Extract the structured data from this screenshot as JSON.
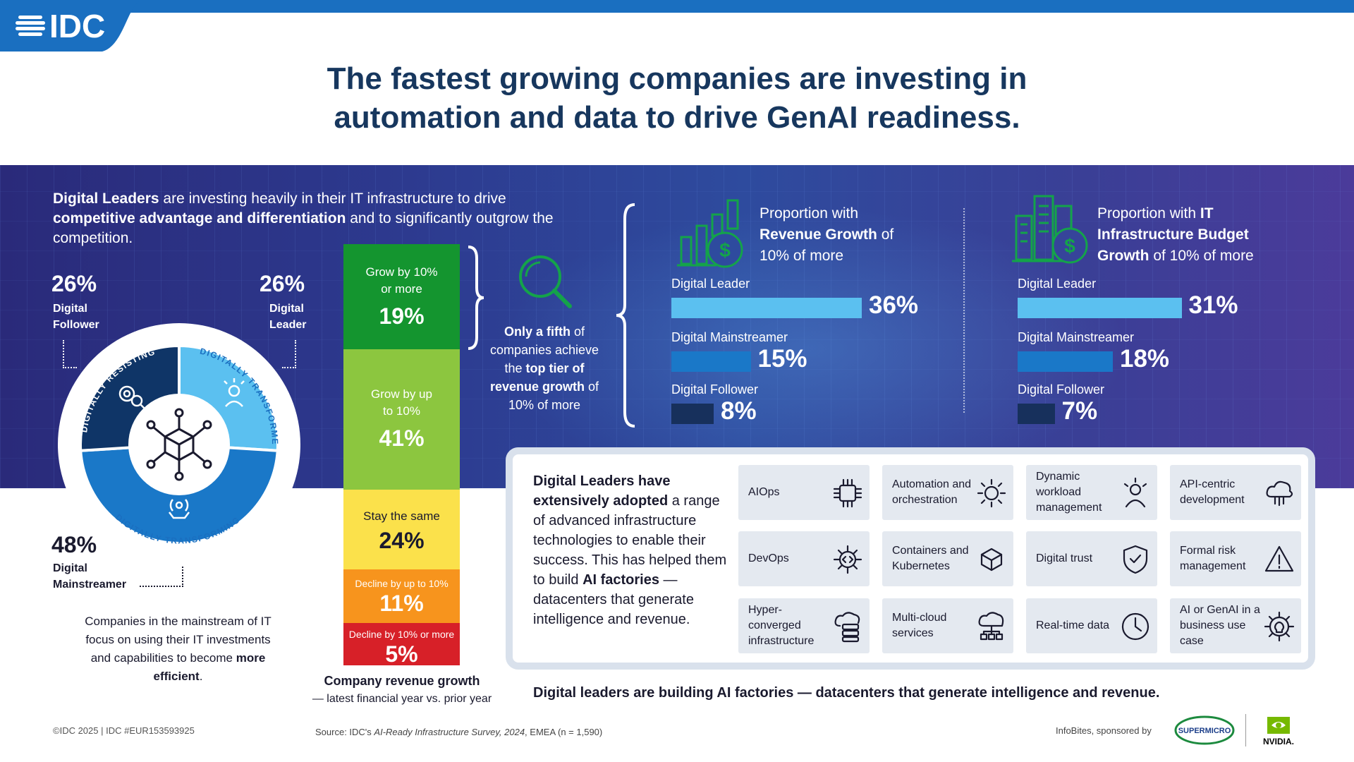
{
  "brand": {
    "logo": "IDC",
    "blue": "#1a6fc0",
    "navy": "#17375e"
  },
  "headline": {
    "line1": "The fastest growing companies are investing in",
    "line2": "automation and data to drive GenAI readiness."
  },
  "intro": {
    "b1": "Digital Leaders",
    "t1": " are investing heavily in their IT infrastructure to drive ",
    "b2": "competitive advantage and differentiation",
    "t2": " and to significantly outgrow the competition."
  },
  "segments": {
    "follower": {
      "pct": "26%",
      "name1": "Digital",
      "name2": "Follower",
      "value": 26
    },
    "leader": {
      "pct": "26%",
      "name1": "Digital",
      "name2": "Leader",
      "value": 26
    },
    "mainstreamer": {
      "pct": "48%",
      "name1": "Digital",
      "name2": "Mainstreamer",
      "value": 48
    },
    "ring_labels": [
      "DIGITALLY RESISTING",
      "DIGITALLY TRANSFORMED",
      "DIGITALLY TRANSFORMING"
    ]
  },
  "mainstream_note": {
    "t1": "Companies in the mainstream of IT focus on using their IT investments and capabilities to become ",
    "b1": "more efficient",
    "t2": "."
  },
  "chart_data": [
    {
      "type": "bar",
      "title": "Company revenue growth",
      "subtitle": "— latest financial year vs. prior year",
      "categories": [
        "Grow by 10% or more",
        "Grow by up to 10%",
        "Stay the same",
        "Decline by up to 10%",
        "Decline by 10% or more"
      ],
      "values": [
        19,
        41,
        24,
        11,
        5
      ],
      "value_labels": [
        "19%",
        "41%",
        "24%",
        "11%",
        "5%"
      ],
      "colors": [
        "#14952f",
        "#8cc63f",
        "#fbe14b",
        "#f7941d",
        "#d72028"
      ],
      "stacked": true
    },
    {
      "type": "bar",
      "title": "Proportion with Revenue Growth of 10% of more",
      "categories": [
        "Digital Leader",
        "Digital Mainstreamer",
        "Digital Follower"
      ],
      "values": [
        36,
        15,
        8
      ],
      "value_labels": [
        "36%",
        "15%",
        "8%"
      ],
      "colors": [
        "#5bc0f0",
        "#1a78c8",
        "#17305c"
      ]
    },
    {
      "type": "bar",
      "title": "Proportion with IT Infrastructure Budget Growth of 10% of more",
      "categories": [
        "Digital Leader",
        "Digital Mainstreamer",
        "Digital Follower"
      ],
      "values": [
        31,
        18,
        7
      ],
      "value_labels": [
        "31%",
        "18%",
        "7%"
      ],
      "colors": [
        "#5bc0f0",
        "#1a78c8",
        "#17305c"
      ]
    }
  ],
  "stack_labels": {
    "s1a": "Grow by 10%",
    "s1b": "or more",
    "s2a": "Grow by up",
    "s2b": "to 10%",
    "s3": "Stay the same",
    "s4": "Decline by up to 10%",
    "s5": "Decline by 10% or more"
  },
  "fifth": {
    "b1": "Only a fifth",
    "t1": " of companies achieve the ",
    "b2": "top tier of revenue growth",
    "t2": " of 10% of more"
  },
  "panel1": {
    "t1": "Proportion with",
    "b1": "Revenue Growth",
    "t2": " of",
    "t3": "10% of more"
  },
  "panel2": {
    "t1": "Proportion with ",
    "b1": "IT",
    "b2": "Infrastructure Budget",
    "b3": "Growth",
    "t2": " of 10% of more"
  },
  "tech": {
    "intro": {
      "b1": "Digital Leaders have extensively adopted",
      "t1": " a range of advanced infrastructure technologies to enable their success. This has helped them to build ",
      "b2": "AI factories",
      "t2": " — datacenters that generate intelligence and revenue."
    },
    "tiles": [
      {
        "label": "AIOps",
        "icon": "ai-chip-icon"
      },
      {
        "label": "Automation and orchestration",
        "icon": "gear-cycle-icon"
      },
      {
        "label": "Dynamic workload management",
        "icon": "person-idea-icon"
      },
      {
        "label": "API-centric development",
        "icon": "cloud-network-icon"
      },
      {
        "label": "DevOps",
        "icon": "gear-code-icon"
      },
      {
        "label": "Containers and Kubernetes",
        "icon": "cube-network-icon"
      },
      {
        "label": "Digital trust",
        "icon": "shield-check-icon"
      },
      {
        "label": "Formal risk management",
        "icon": "warning-icon"
      },
      {
        "label": "Hyper-converged infrastructure",
        "icon": "cloud-server-icon"
      },
      {
        "label": "Multi-cloud services",
        "icon": "cloud-hierarchy-icon"
      },
      {
        "label": "Real-time data",
        "icon": "clock-icon"
      },
      {
        "label": "AI or GenAI in a business use case",
        "icon": "gear-bulb-icon"
      }
    ]
  },
  "tagline": "Digital leaders are building AI factories — datacenters that generate intelligence and revenue.",
  "footer": {
    "left": "©IDC 2025  |  IDC #EUR153593925",
    "src1": "Source: IDC's ",
    "src_i": "AI-Ready Infrastructure Survey, 2024",
    "src2": ", EMEA (n = 1,590)",
    "sponsored": "InfoBites, sponsored by",
    "supermicro": "SUPERMICRO",
    "nvidia": "NVIDIA."
  }
}
